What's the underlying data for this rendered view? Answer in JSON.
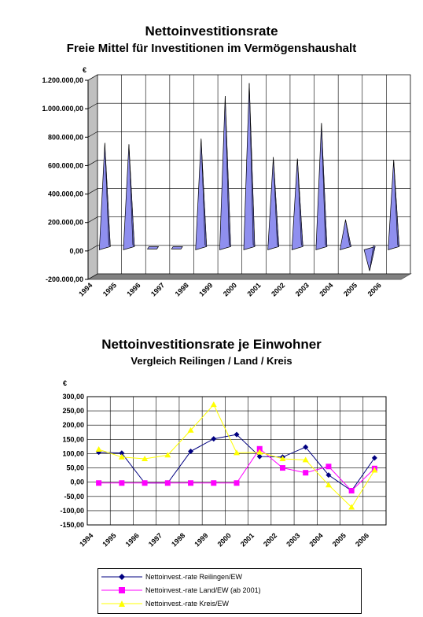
{
  "chart_data": [
    {
      "type": "bar",
      "title": "Nettoinvestitionsrate",
      "subtitle": "Freie Mittel für Investitionen im Vermögenshaushalt",
      "ylabel": "€",
      "categories": [
        "1994",
        "1995",
        "1996",
        "1997",
        "1998",
        "1999",
        "2000",
        "2001",
        "2002",
        "2003",
        "2004",
        "2005",
        "2006"
      ],
      "values": [
        740000,
        730000,
        5000,
        5000,
        770000,
        1070000,
        1160000,
        640000,
        630000,
        880000,
        200000,
        -160000,
        620000
      ],
      "ylim": [
        -200000,
        1200000
      ],
      "yticks": [
        "-200.000,00",
        "0,00",
        "200.000,00",
        "400.000,00",
        "600.000,00",
        "800.000,00",
        "1.000.000,00",
        "1.200.000,00"
      ],
      "color": "#8f8fef",
      "grid": true
    },
    {
      "type": "line",
      "title": "Nettoinvestitionsrate je Einwohner",
      "subtitle": "Vergleich Reilingen / Land / Kreis",
      "ylabel": "€",
      "categories": [
        "1994",
        "1995",
        "1996",
        "1997",
        "1998",
        "1999",
        "2000",
        "2001",
        "2002",
        "2003",
        "2004",
        "2005",
        "2006"
      ],
      "ylim": [
        -150,
        300
      ],
      "yticks": [
        "-150,00",
        "-100,00",
        "-50,00",
        "0,00",
        "50,00",
        "100,00",
        "150,00",
        "200,00",
        "250,00",
        "300,00"
      ],
      "grid": true,
      "legend_position": "bottom",
      "series": [
        {
          "name": "Nettoinvest.-rate Reilingen/EW",
          "color": "#000080",
          "marker": "diamond",
          "values": [
            105,
            102,
            -3,
            -3,
            108,
            152,
            167,
            90,
            88,
            123,
            25,
            -30,
            85
          ]
        },
        {
          "name": "Nettoinvest.-rate Land/EW (ab 2001)",
          "color": "#ff00ff",
          "marker": "square",
          "values": [
            -3,
            -3,
            -3,
            -3,
            -3,
            -3,
            -3,
            117,
            50,
            33,
            55,
            -30,
            48
          ]
        },
        {
          "name": "Nettoinvest.-rate Kreis/EW",
          "color": "#ffff00",
          "marker": "triangle",
          "values": [
            115,
            88,
            82,
            95,
            182,
            272,
            103,
            105,
            82,
            78,
            -10,
            -88,
            42
          ]
        }
      ]
    }
  ]
}
